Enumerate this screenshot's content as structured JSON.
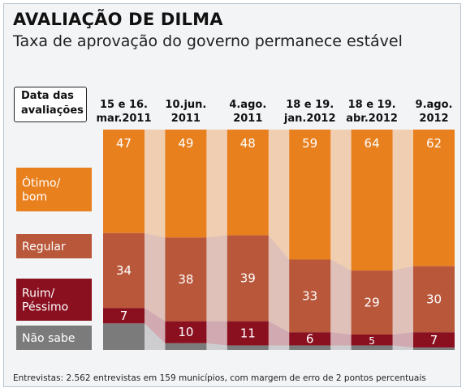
{
  "header": {
    "title": "AVALIAÇÃO DE DILMA",
    "subtitle": "Taxa de aprovação do governo permanece estável"
  },
  "legend_heading": [
    "Data das",
    "avaliações"
  ],
  "footnote": "Entrevistas: 2.562 entrevistas em 159 municípios, com margem de erro de 2 pontos percentuais",
  "chart_data": {
    "type": "bar",
    "stacked": true,
    "categories": [
      [
        "15 e 16.",
        "mar.2011"
      ],
      [
        "10.jun.",
        "2011"
      ],
      [
        "4.ago.",
        "2011"
      ],
      [
        "18 e 19.",
        "jan.2012"
      ],
      [
        "18 e 19.",
        "abr.2012"
      ],
      [
        "9.ago.",
        "2012"
      ]
    ],
    "series": [
      {
        "name": "Ótimo/ bom",
        "label_lines": [
          "Ótimo/",
          "bom"
        ],
        "color": "#e8801e",
        "values": [
          47,
          49,
          48,
          59,
          64,
          62
        ]
      },
      {
        "name": "Regular",
        "label_lines": [
          "Regular"
        ],
        "color": "#b9573a",
        "values": [
          34,
          38,
          39,
          33,
          29,
          30
        ]
      },
      {
        "name": "Ruim/ Péssimo",
        "label_lines": [
          "Ruim/",
          "Péssimo"
        ],
        "color": "#8a1020",
        "values": [
          7,
          10,
          11,
          6,
          5,
          7
        ]
      },
      {
        "name": "Não sabe",
        "label_lines": [
          "Não sabe"
        ],
        "color": "#7b7b7b",
        "values": [
          12,
          3,
          2,
          2,
          2,
          1
        ]
      }
    ],
    "show_values": [
      true,
      true,
      true,
      false
    ],
    "ylim": [
      0,
      100
    ]
  }
}
